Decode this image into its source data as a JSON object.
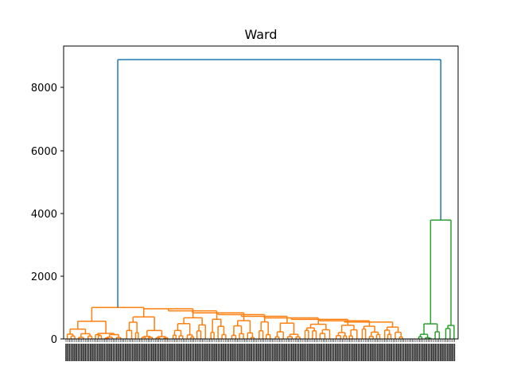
{
  "chart_data": {
    "type": "dendrogram",
    "title": "Ward",
    "xlabel": "",
    "ylabel": "",
    "ylim": [
      0,
      9000
    ],
    "yticks": [
      0,
      2000,
      4000,
      6000,
      8000
    ],
    "grid": false,
    "legend": "none",
    "colors": {
      "root": "#1f77b4",
      "cluster_1": "#ff7f0e",
      "cluster_2": "#2ca02c"
    },
    "root_merge_height": 8880,
    "clusters": [
      {
        "color_key": "cluster_1",
        "merge_height": 1000,
        "approx_leaf_share": 0.9
      },
      {
        "color_key": "cluster_2",
        "merge_height": 3780,
        "approx_leaf_share": 0.1
      }
    ],
    "leaf_labels": "dense, unreadable"
  }
}
